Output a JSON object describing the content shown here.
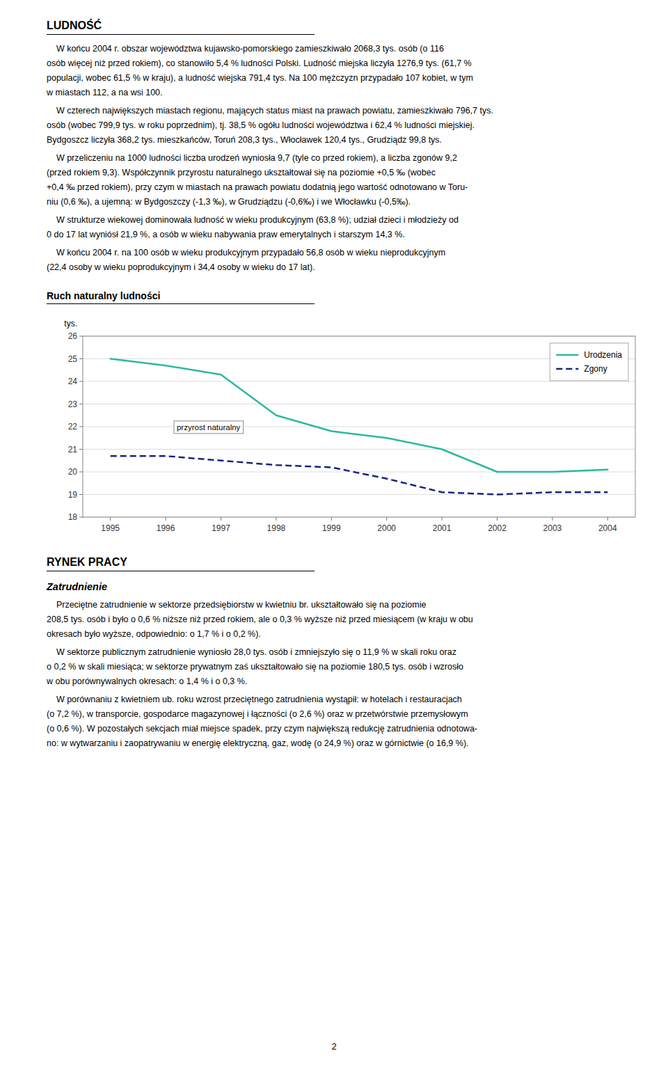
{
  "page": {
    "top_heading": "LUDNOŚĆ",
    "top_lines": [
      "    W końcu 2004 r. obszar województwa kujawsko-pomorskiego zamieszkiwało 2068,3 tys. osób (o 116",
      "osób więcej niż przed rokiem), co stanowiło 5,4 % ludności Polski. Ludność miejska liczyła 1276,9 tys. (61,7 %",
      "populacji, wobec 61,5 % w kraju), a ludność wiejska 791,4 tys. Na 100 mężczyzn przypadało 107 kobiet, w tym",
      "w miastach 112, a na wsi 100.",
      "    W czterech największych miastach regionu, mających status miast na prawach powiatu, zamieszkiwało 796,7 tys.",
      "osób (wobec 799,9 tys. w roku poprzednim), tj. 38,5 % ogółu ludności województwa i 62,4 % ludności miejskiej.",
      "Bydgoszcz liczyła 368,2 tys. mieszkańców, Toruń 208,3 tys., Włocławek 120,4 tys., Grudziądz 99,8 tys.",
      "    W przeliczeniu na 1000 ludności liczba urodzeń wyniosła 9,7 (tyle co przed rokiem), a liczba zgonów 9,2",
      "(przed rokiem 9,3). Współczynnik przyrostu naturalnego ukształtował się na poziomie +0,5 ‰ (wobec",
      "+0,4 ‰ przed rokiem), przy czym w miastach na prawach powiatu dodatnią jego wartość odnotowano w Toru-",
      "niu (0,6 ‰), a ujemną: w Bydgoszczy (-1,3 ‰), w Grudziądzu (-0,6‰) i we Włocławku (-0,5‰).",
      "    W strukturze wiekowej dominowała ludność w wieku produkcyjnym (63,8 %); udział dzieci i młodzieży od",
      "0 do 17 lat wyniósł 21,9 %, a osób w wieku nabywania praw emerytalnych i starszym 14,3 %.",
      "    W końcu 2004 r. na 100 osób w wieku produkcyjnym przypadało 56,8 osób w wieku nieprodukcyjnym",
      "(22,4 osoby w wieku poprodukcyjnym i 34,4 osoby w wieku do 17 lat)."
    ],
    "bottom_heading": "RYNEK PRACY",
    "bottom_subheading": "Zatrudnienie",
    "bottom_lines": [
      "    Przeciętne zatrudnienie w sektorze przedsiębiorstw w kwietniu br. ukształtowało się na poziomie",
      "208,5 tys. osób i było o 0,6 % niższe niż przed rokiem, ale o 0,3 % wyższe niż przed miesiącem (w kraju w obu",
      "okresach było wyższe, odpowiednio: o 1,7 % i o 0,2 %).",
      "    W sektorze publicznym zatrudnienie wyniosło 28,0 tys. osób i zmniejszyło się o 11,9 % w skali roku oraz",
      "o 0,2 % w skali miesiąca; w sektorze prywatnym zaś ukształtowało się na poziomie 180,5 tys. osób i wzrosło",
      "w obu porównywalnych okresach: o 1,4 % i o 0,3 %.",
      "    W porównaniu z kwietniem ub. roku wzrost przeciętnego zatrudnienia wystąpił: w hotelach i restauracjach",
      "(o 7,2 %), w transporcie, gospodarce magazynowej i łączności (o 2,6 %) oraz w przetwórstwie przemysłowym",
      "(o 0,6 %). W pozostałych sekcjach miał miejsce spadek, przy czym największą redukcję zatrudnienia odnotowa-",
      "no: w wytwarzaniu i zaopatrywaniu w energię elektryczną, gaz, wodę (o 24,9 %) oraz w górnictwie (o 16,9 %)."
    ],
    "page_number": "2"
  },
  "chart_data": {
    "type": "line",
    "title": "Ruch naturalny ludności",
    "ylabel": "tys.",
    "x": [
      1995,
      1996,
      1997,
      1998,
      1999,
      2000,
      2001,
      2002,
      2003,
      2004
    ],
    "series": [
      {
        "name": "Urodzenia",
        "color": "#2db8a0",
        "line_style": "solid",
        "values": [
          25.0,
          24.7,
          24.3,
          22.5,
          21.8,
          21.5,
          21.0,
          20.0,
          20.0,
          20.1
        ]
      },
      {
        "name": "Zgony",
        "color": "#1a237e",
        "line_style": "dashed",
        "values": [
          20.7,
          20.7,
          20.5,
          20.3,
          20.2,
          19.7,
          19.1,
          19.0,
          19.1,
          19.1
        ]
      }
    ],
    "xlim": [
      1994.5,
      2004.5
    ],
    "xticks": [
      1995,
      1996,
      1997,
      1998,
      1999,
      2000,
      2001,
      2002,
      2003,
      2004
    ],
    "ylim": [
      18,
      26
    ],
    "yticks": [
      18,
      19,
      20,
      21,
      22,
      23,
      24,
      25,
      26
    ],
    "grid": true,
    "legend": "upper right",
    "annotations": [
      {
        "text": "przyrost naturalny",
        "x": 1996.2,
        "y": 21.85
      }
    ]
  }
}
